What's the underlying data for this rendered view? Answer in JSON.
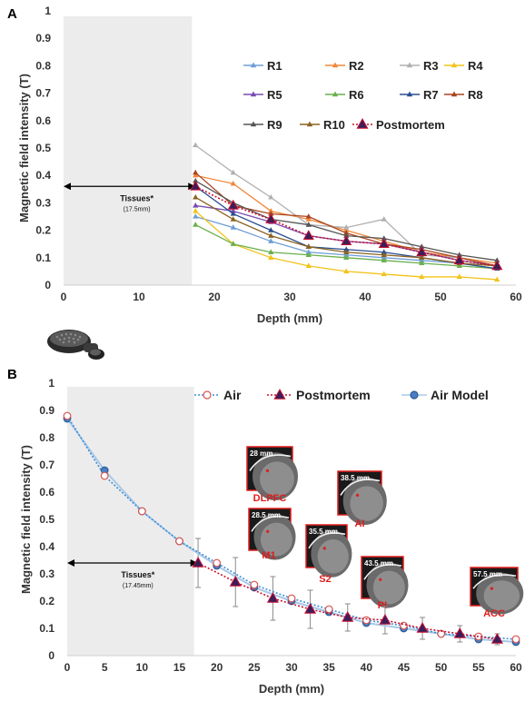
{
  "panels": {
    "a": "A",
    "b": "B"
  },
  "chart_data": [
    {
      "type": "line",
      "panel": "A",
      "ylabel": "Magnetic field intensity (T)",
      "xlabel": "Depth (mm)",
      "xlim": [
        0,
        60
      ],
      "ylim": [
        0,
        1
      ],
      "xticks": [
        0,
        10,
        20,
        30,
        40,
        50,
        60
      ],
      "yticks": [
        0,
        0.1,
        0.2,
        0.3,
        0.4,
        0.5,
        0.6,
        0.7,
        0.8,
        0.9,
        1
      ],
      "ytick_labels": [
        "0",
        "0.1",
        "0.2",
        "0.3",
        "0.4",
        "0.5",
        "0.6",
        "0.7",
        "0.8",
        "0.9",
        "1"
      ],
      "shaded_region": [
        0,
        17.5
      ],
      "tissue_annotation": {
        "label": "Tissues*",
        "sublabel": "(17.5mm)",
        "range": [
          0,
          17.5
        ],
        "y": 0.36
      },
      "x": [
        17.5,
        22.5,
        27.5,
        32.5,
        37.5,
        42.5,
        47.5,
        52.5,
        57.5
      ],
      "series": [
        {
          "name": "R1",
          "color": "#6f9ed8",
          "values": [
            0.25,
            0.21,
            0.16,
            0.12,
            0.11,
            0.1,
            0.09,
            0.08,
            0.06
          ]
        },
        {
          "name": "R2",
          "color": "#f0883a",
          "values": [
            0.4,
            0.37,
            0.27,
            0.24,
            0.2,
            0.16,
            0.12,
            0.1,
            0.08
          ]
        },
        {
          "name": "R3",
          "color": "#b0b0b0",
          "values": [
            0.51,
            0.41,
            0.32,
            0.22,
            0.21,
            0.24,
            0.11,
            0.1,
            0.07
          ]
        },
        {
          "name": "R4",
          "color": "#f2c318",
          "values": [
            0.27,
            0.15,
            0.1,
            0.07,
            0.05,
            0.04,
            0.03,
            0.03,
            0.02
          ]
        },
        {
          "name": "R5",
          "color": "#7a4cb5",
          "values": [
            0.29,
            0.27,
            0.23,
            0.18,
            0.16,
            0.15,
            0.12,
            0.09,
            0.07
          ]
        },
        {
          "name": "R6",
          "color": "#6ab04c",
          "values": [
            0.22,
            0.15,
            0.12,
            0.11,
            0.1,
            0.09,
            0.08,
            0.07,
            0.06
          ]
        },
        {
          "name": "R7",
          "color": "#2a4e8f",
          "values": [
            0.36,
            0.26,
            0.2,
            0.14,
            0.13,
            0.12,
            0.1,
            0.08,
            0.06
          ]
        },
        {
          "name": "R8",
          "color": "#a94420",
          "values": [
            0.41,
            0.29,
            0.26,
            0.25,
            0.19,
            0.15,
            0.13,
            0.1,
            0.07
          ]
        },
        {
          "name": "R9",
          "color": "#555555",
          "values": [
            0.38,
            0.3,
            0.24,
            0.22,
            0.18,
            0.17,
            0.14,
            0.11,
            0.09
          ]
        },
        {
          "name": "R10",
          "color": "#8b6220",
          "values": [
            0.32,
            0.24,
            0.18,
            0.14,
            0.12,
            0.11,
            0.1,
            0.08,
            0.07
          ]
        },
        {
          "name": "Postmortem",
          "color": "#c8102e",
          "marker_fill": "#3b1e5a",
          "values": [
            0.36,
            0.29,
            0.24,
            0.18,
            0.16,
            0.15,
            0.12,
            0.09,
            0.07
          ]
        }
      ],
      "legend": {
        "placement": "top-right"
      }
    },
    {
      "type": "line",
      "panel": "B",
      "ylabel": "Magnetic field intensity (T)",
      "xlabel": "Depth (mm)",
      "xlim": [
        0,
        60
      ],
      "ylim": [
        0,
        1
      ],
      "xticks": [
        0,
        5,
        10,
        15,
        20,
        25,
        30,
        35,
        40,
        45,
        50,
        55,
        60
      ],
      "yticks": [
        0,
        0.1,
        0.2,
        0.3,
        0.4,
        0.5,
        0.6,
        0.7,
        0.8,
        0.9,
        1
      ],
      "ytick_labels": [
        "0",
        "0.1",
        "0.2",
        "0.3",
        "0.4",
        "0.5",
        "0.6",
        "0.7",
        "0.8",
        "0.9",
        "1"
      ],
      "shaded_region": [
        0,
        17.45
      ],
      "tissue_annotation": {
        "label": "Tissues*",
        "sublabel": "(17.45mm)",
        "range": [
          0,
          17.45
        ],
        "y": 0.34
      },
      "series": [
        {
          "name": "Air",
          "color": "#3a8fd6",
          "marker_fill": "#ffffff",
          "marker_stroke": "#d9534f",
          "x": [
            0,
            5,
            10,
            15,
            20,
            25,
            30,
            35,
            40,
            45,
            50,
            55,
            60
          ],
          "values": [
            0.88,
            0.66,
            0.53,
            0.42,
            0.34,
            0.26,
            0.21,
            0.17,
            0.13,
            0.11,
            0.08,
            0.07,
            0.06
          ]
        },
        {
          "name": "Postmortem",
          "color": "#c8102e",
          "marker_fill": "#3b1e5a",
          "x": [
            17.5,
            22.5,
            27.5,
            32.5,
            37.5,
            42.5,
            47.5,
            52.5,
            57.5
          ],
          "values": [
            0.34,
            0.27,
            0.21,
            0.17,
            0.14,
            0.13,
            0.1,
            0.08,
            0.06
          ],
          "error": [
            0.09,
            0.09,
            0.08,
            0.07,
            0.05,
            0.05,
            0.04,
            0.03,
            0.02
          ]
        },
        {
          "name": "Air Model",
          "color": "#a8c8e8",
          "marker_fill": "#4a7ec4",
          "marker_stroke": "#2d5b94",
          "x": [
            0,
            5,
            10,
            15,
            20,
            25,
            30,
            35,
            40,
            45,
            50,
            55,
            60
          ],
          "values": [
            0.87,
            0.68,
            0.53,
            0.42,
            0.33,
            0.25,
            0.2,
            0.16,
            0.12,
            0.1,
            0.08,
            0.06,
            0.05
          ]
        }
      ],
      "legend": {
        "placement": "top"
      },
      "brain_insets": [
        {
          "region": "DLPFC",
          "depth": "28 mm"
        },
        {
          "region": "AI",
          "depth": "38.5 mm"
        },
        {
          "region": "M1",
          "depth": "28.5 mm"
        },
        {
          "region": "S2",
          "depth": "35.5 mm"
        },
        {
          "region": "PI",
          "depth": "43.5 mm"
        },
        {
          "region": "ACC",
          "depth": "57.5 mm"
        }
      ]
    }
  ]
}
